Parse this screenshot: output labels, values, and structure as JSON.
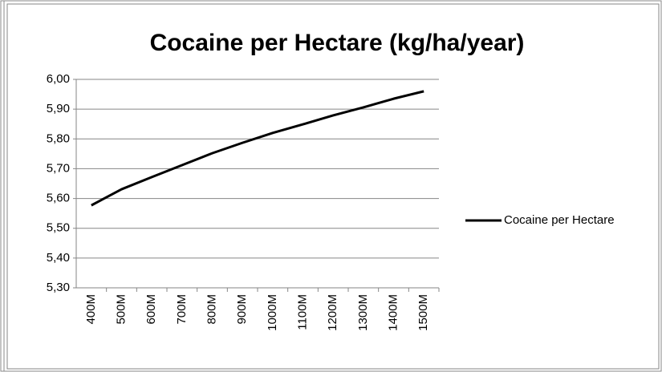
{
  "chart_data": {
    "type": "line",
    "title": "Cocaine per Hectare (kg/ha/year)",
    "categories": [
      "400M",
      "500M",
      "600M",
      "700M",
      "800M",
      "900M",
      "1000M",
      "1100M",
      "1200M",
      "1300M",
      "1400M",
      "1500M"
    ],
    "series": [
      {
        "name": "Cocaine per Hectare",
        "color": "#000000",
        "values": [
          5.577,
          5.631,
          5.672,
          5.712,
          5.752,
          5.787,
          5.82,
          5.849,
          5.879,
          5.906,
          5.935,
          5.96
        ]
      }
    ],
    "ylim": [
      5.3,
      6.0
    ],
    "yticks": [
      {
        "value": 5.3,
        "label": "5,30"
      },
      {
        "value": 5.4,
        "label": "5,40"
      },
      {
        "value": 5.5,
        "label": "5,50"
      },
      {
        "value": 5.6,
        "label": "5,60"
      },
      {
        "value": 5.7,
        "label": "5,70"
      },
      {
        "value": 5.8,
        "label": "5,80"
      },
      {
        "value": 5.9,
        "label": "5,90"
      },
      {
        "value": 6.0,
        "label": "6,00"
      }
    ],
    "grid": true,
    "legend": "right"
  }
}
